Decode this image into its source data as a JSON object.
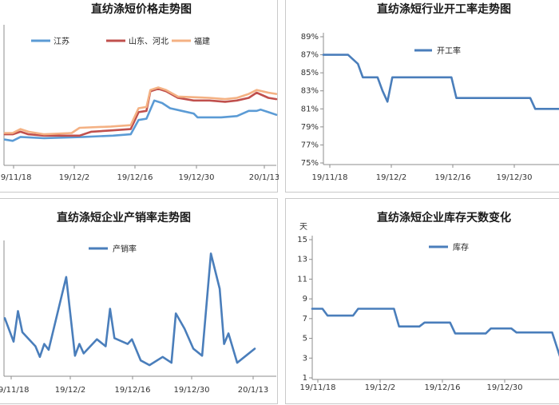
{
  "chart_data": [
    {
      "type": "line",
      "title": "直纺涤短价格走势图",
      "x_tick_labels": [
        "19/11/18",
        "19/12/2",
        "19/12/16",
        "19/12/30",
        "20/1/13"
      ],
      "legend_position": "top-left",
      "series": [
        {
          "name": "江苏",
          "color": "#5b9bd5",
          "points": [
            [
              0,
              0.18
            ],
            [
              4,
              0.17
            ],
            [
              8,
              0.2
            ],
            [
              20,
              0.19
            ],
            [
              40,
              0.2
            ],
            [
              55,
              0.21
            ],
            [
              64,
              0.22
            ],
            [
              68,
              0.33
            ],
            [
              72,
              0.34
            ],
            [
              76,
              0.48
            ],
            [
              80,
              0.46
            ],
            [
              84,
              0.42
            ],
            [
              90,
              0.4
            ],
            [
              96,
              0.38
            ],
            [
              98,
              0.35
            ],
            [
              110,
              0.35
            ],
            [
              118,
              0.36
            ],
            [
              124,
              0.4
            ],
            [
              128,
              0.4
            ],
            [
              130,
              0.41
            ],
            [
              134,
              0.39
            ],
            [
              138,
              0.37
            ]
          ]
        },
        {
          "name": "山东、河北",
          "color": "#c0504d",
          "points": [
            [
              0,
              0.22
            ],
            [
              4,
              0.22
            ],
            [
              8,
              0.24
            ],
            [
              12,
              0.22
            ],
            [
              20,
              0.21
            ],
            [
              38,
              0.21
            ],
            [
              44,
              0.24
            ],
            [
              54,
              0.25
            ],
            [
              64,
              0.26
            ],
            [
              68,
              0.39
            ],
            [
              72,
              0.4
            ],
            [
              74,
              0.55
            ],
            [
              78,
              0.57
            ],
            [
              82,
              0.55
            ],
            [
              88,
              0.5
            ],
            [
              96,
              0.48
            ],
            [
              104,
              0.48
            ],
            [
              112,
              0.47
            ],
            [
              118,
              0.48
            ],
            [
              124,
              0.5
            ],
            [
              128,
              0.54
            ],
            [
              134,
              0.5
            ],
            [
              138,
              0.49
            ]
          ]
        },
        {
          "name": "福建",
          "color": "#f4b183",
          "points": [
            [
              0,
              0.23
            ],
            [
              4,
              0.23
            ],
            [
              8,
              0.26
            ],
            [
              12,
              0.24
            ],
            [
              20,
              0.22
            ],
            [
              34,
              0.23
            ],
            [
              38,
              0.27
            ],
            [
              54,
              0.28
            ],
            [
              64,
              0.29
            ],
            [
              68,
              0.42
            ],
            [
              72,
              0.43
            ],
            [
              74,
              0.56
            ],
            [
              78,
              0.58
            ],
            [
              82,
              0.56
            ],
            [
              88,
              0.51
            ],
            [
              104,
              0.5
            ],
            [
              112,
              0.49
            ],
            [
              118,
              0.5
            ],
            [
              124,
              0.53
            ],
            [
              128,
              0.56
            ],
            [
              134,
              0.54
            ],
            [
              138,
              0.53
            ]
          ]
        }
      ]
    },
    {
      "type": "line",
      "title": "直纺涤短行业开工率走势图",
      "y_tick_labels": [
        "89%",
        "87%",
        "85%",
        "83%",
        "81%",
        "79%",
        "77%",
        "75%"
      ],
      "ylim": [
        75,
        89
      ],
      "x_tick_labels": [
        "19/11/18",
        "19/12/2",
        "19/12/16",
        "19/12/30"
      ],
      "legend_position": "top-left",
      "series": [
        {
          "name": "开工率",
          "color": "#4a7ebb",
          "points": [
            [
              0,
              87
            ],
            [
              10,
              87
            ],
            [
              14,
              86
            ],
            [
              16,
              84.5
            ],
            [
              22,
              84.5
            ],
            [
              24,
              83
            ],
            [
              26,
              81.8
            ],
            [
              28,
              84.5
            ],
            [
              52,
              84.5
            ],
            [
              54,
              82.2
            ],
            [
              84,
              82.2
            ],
            [
              86,
              81
            ],
            [
              96,
              81
            ]
          ]
        }
      ]
    },
    {
      "type": "line",
      "title": "直纺涤短企业产销率走势图",
      "x_tick_labels": [
        "19/11/18",
        "19/12/2",
        "19/12/16",
        "19/12/30",
        "20/1/13"
      ],
      "legend_position": "top",
      "series": [
        {
          "name": "产销率",
          "color": "#4a7ebb",
          "points": [
            [
              0,
              0.42
            ],
            [
              4,
              0.22
            ],
            [
              6,
              0.48
            ],
            [
              8,
              0.3
            ],
            [
              14,
              0.18
            ],
            [
              16,
              0.09
            ],
            [
              18,
              0.2
            ],
            [
              20,
              0.15
            ],
            [
              28,
              0.77
            ],
            [
              32,
              0.1
            ],
            [
              34,
              0.2
            ],
            [
              36,
              0.12
            ],
            [
              42,
              0.24
            ],
            [
              46,
              0.18
            ],
            [
              48,
              0.5
            ],
            [
              50,
              0.25
            ],
            [
              56,
              0.2
            ],
            [
              58,
              0.24
            ],
            [
              62,
              0.06
            ],
            [
              66,
              0.02
            ],
            [
              72,
              0.09
            ],
            [
              76,
              0.04
            ],
            [
              78,
              0.46
            ],
            [
              82,
              0.33
            ],
            [
              86,
              0.16
            ],
            [
              90,
              0.1
            ],
            [
              94,
              0.97
            ],
            [
              98,
              0.67
            ],
            [
              100,
              0.2
            ],
            [
              102,
              0.29
            ],
            [
              106,
              0.04
            ],
            [
              110,
              0.1
            ],
            [
              114,
              0.16
            ]
          ]
        }
      ]
    },
    {
      "type": "line",
      "title": "直纺涤短企业库存天数变化",
      "ylabel": "天",
      "y_tick_labels": [
        "15",
        "13",
        "11",
        "9",
        "7",
        "5",
        "3",
        "1"
      ],
      "ylim": [
        1,
        15
      ],
      "x_tick_labels": [
        "19/11/18",
        "19/12/2",
        "19/12/16",
        "19/12/30"
      ],
      "legend_position": "top-left",
      "series": [
        {
          "name": "库存",
          "color": "#4a7ebb",
          "points": [
            [
              0,
              8
            ],
            [
              4,
              8
            ],
            [
              6,
              7.3
            ],
            [
              16,
              7.3
            ],
            [
              18,
              8
            ],
            [
              32,
              8
            ],
            [
              34,
              6.2
            ],
            [
              42,
              6.2
            ],
            [
              44,
              6.6
            ],
            [
              54,
              6.6
            ],
            [
              56,
              5.5
            ],
            [
              68,
              5.5
            ],
            [
              70,
              6
            ],
            [
              78,
              6
            ],
            [
              80,
              5.6
            ],
            [
              94,
              5.6
            ],
            [
              96,
              4
            ],
            [
              97,
              3.2
            ]
          ]
        }
      ]
    }
  ]
}
